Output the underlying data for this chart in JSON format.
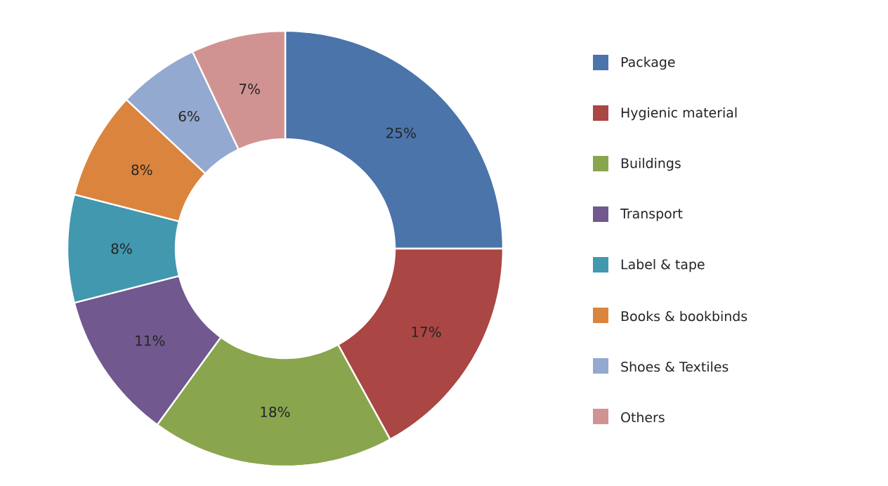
{
  "chart_data": {
    "type": "donut",
    "categories": [
      "Package",
      "Hygienic material",
      "Buildings",
      "Transport",
      "Label & tape",
      "Books & bookbinds",
      "Shoes & Textiles",
      "Others"
    ],
    "values": [
      25,
      17,
      18,
      11,
      8,
      8,
      6,
      7
    ],
    "value_labels": [
      "25%",
      "17%",
      "18%",
      "11%",
      "8%",
      "8%",
      "6%",
      "7%"
    ],
    "colors": [
      "#4a74aa",
      "#aa4643",
      "#89a54e",
      "#71588f",
      "#4198af",
      "#db843d",
      "#93a9cf",
      "#d19392"
    ],
    "legend": "right"
  }
}
